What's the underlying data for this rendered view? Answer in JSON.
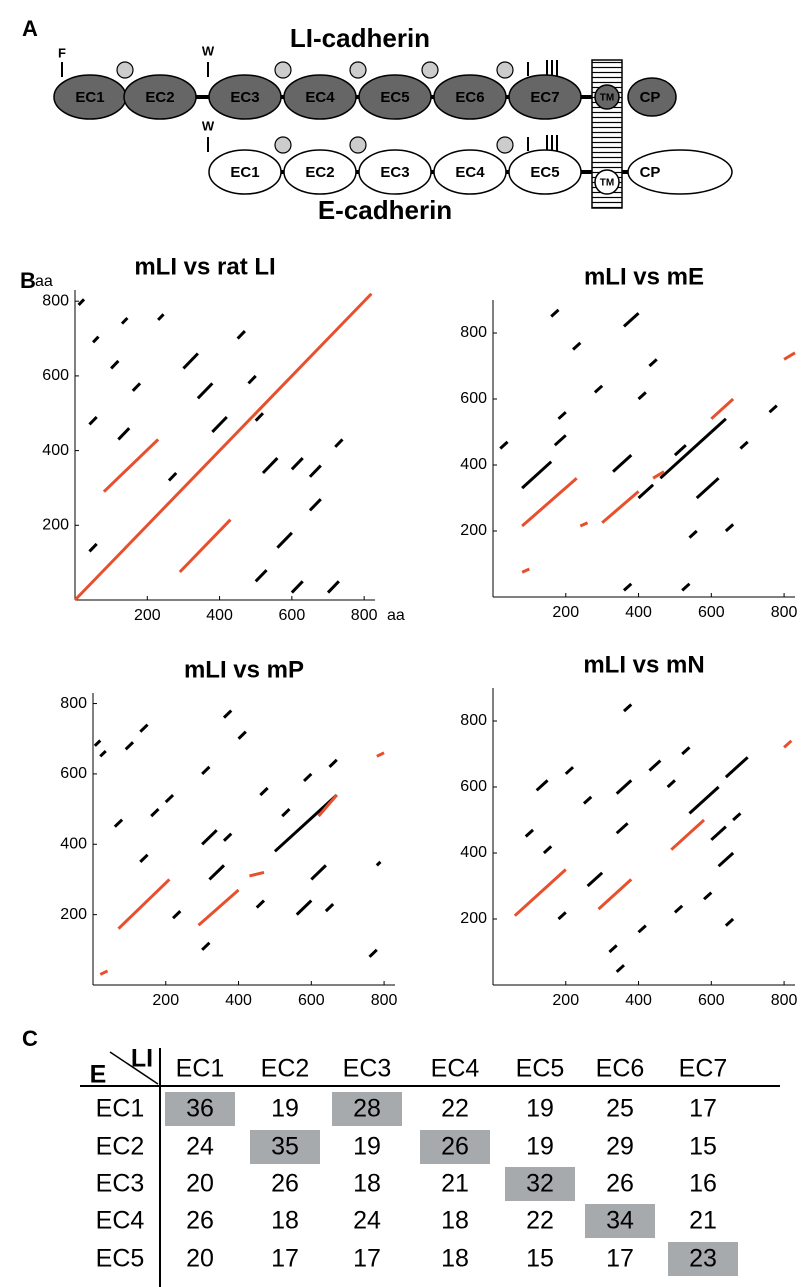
{
  "panel_a": {
    "label": "A",
    "li": {
      "title": "LI-cadherin",
      "mark_f": "F",
      "mark_w": "W",
      "domains": [
        "EC1",
        "EC2",
        "EC3",
        "EC4",
        "EC5",
        "EC6",
        "EC7"
      ],
      "tm": "TM",
      "cp": "CP"
    },
    "e": {
      "title": "E-cadherin",
      "mark_w": "W",
      "domains": [
        "EC1",
        "EC2",
        "EC3",
        "EC4",
        "EC5"
      ],
      "tm": "TM",
      "cp": "CP"
    }
  },
  "panel_b": {
    "label": "B"
  },
  "chart_data": [
    {
      "type": "dotplot",
      "title": "mLI vs rat LI",
      "x_label": "aa",
      "y_label": "aa",
      "xlim": [
        0,
        830
      ],
      "ylim": [
        0,
        830
      ],
      "xticks": [
        200,
        400,
        600,
        800
      ],
      "yticks": [
        200,
        400,
        600,
        800
      ],
      "series": [
        {
          "color": "#000000",
          "x": [
            10,
            25,
            null,
            50,
            65,
            null,
            130,
            145,
            null,
            230,
            245,
            null,
            100,
            120,
            null,
            160,
            180,
            null,
            40,
            60,
            null,
            120,
            150,
            null,
            300,
            340,
            null,
            340,
            380,
            null,
            380,
            420,
            null,
            450,
            470,
            null,
            480,
            500,
            null,
            500,
            520,
            null,
            520,
            560,
            null,
            600,
            630,
            null,
            650,
            680,
            null,
            720,
            740,
            null,
            560,
            600,
            null,
            650,
            680,
            null,
            500,
            530,
            null,
            600,
            630,
            null,
            700,
            730,
            null,
            260,
            280,
            null,
            40,
            60
          ],
          "values": [
            790,
            805,
            null,
            690,
            705,
            null,
            740,
            755,
            null,
            750,
            765,
            null,
            620,
            640,
            null,
            560,
            580,
            null,
            470,
            490,
            null,
            430,
            460,
            null,
            620,
            660,
            null,
            540,
            580,
            null,
            450,
            490,
            null,
            700,
            720,
            null,
            580,
            600,
            null,
            480,
            500,
            null,
            340,
            380,
            null,
            350,
            380,
            null,
            330,
            360,
            null,
            410,
            430,
            null,
            140,
            180,
            null,
            240,
            270,
            null,
            50,
            80,
            null,
            20,
            50,
            null,
            20,
            50,
            null,
            320,
            340,
            null,
            130,
            150
          ]
        },
        {
          "color": "#e8502d",
          "x": [
            0,
            820,
            null,
            80,
            230,
            null,
            290,
            430
          ],
          "values": [
            0,
            820,
            null,
            290,
            430,
            null,
            75,
            215
          ]
        }
      ]
    },
    {
      "type": "dotplot",
      "title": "mLI vs mE",
      "xlim": [
        0,
        830
      ],
      "ylim": [
        0,
        900
      ],
      "xticks": [
        200,
        400,
        600,
        800
      ],
      "yticks": [
        200,
        400,
        600,
        800
      ],
      "series": [
        {
          "color": "#000000",
          "x": [
            20,
            40,
            null,
            160,
            180,
            null,
            220,
            240,
            null,
            280,
            300,
            null,
            180,
            200,
            null,
            360,
            400,
            null,
            430,
            450,
            null,
            400,
            420,
            null,
            170,
            200,
            null,
            330,
            380,
            null,
            400,
            440,
            null,
            460,
            600,
            null,
            500,
            530,
            null,
            560,
            620,
            null,
            600,
            640,
            null,
            680,
            700,
            null,
            540,
            560,
            null,
            640,
            660,
            null,
            360,
            380,
            null,
            520,
            540,
            null,
            760,
            780,
            null,
            80,
            160
          ],
          "values": [
            450,
            470,
            null,
            850,
            870,
            null,
            750,
            770,
            null,
            620,
            640,
            null,
            540,
            560,
            null,
            820,
            860,
            null,
            700,
            720,
            null,
            600,
            620,
            null,
            460,
            490,
            null,
            380,
            430,
            null,
            300,
            340,
            null,
            360,
            500,
            null,
            430,
            460,
            null,
            300,
            360,
            null,
            500,
            540,
            null,
            450,
            470,
            null,
            180,
            200,
            null,
            200,
            220,
            null,
            20,
            40,
            null,
            20,
            40,
            null,
            560,
            580,
            null,
            330,
            410
          ]
        },
        {
          "color": "#e8502d",
          "x": [
            80,
            230,
            null,
            240,
            260,
            null,
            300,
            400,
            null,
            440,
            470,
            null,
            600,
            660,
            null,
            800,
            830,
            null,
            80,
            100
          ],
          "values": [
            215,
            360,
            null,
            215,
            225,
            null,
            225,
            320,
            null,
            360,
            380,
            null,
            540,
            600,
            null,
            720,
            740,
            null,
            75,
            85
          ]
        }
      ]
    },
    {
      "type": "dotplot",
      "title": "mLI vs mP",
      "xlim": [
        0,
        830
      ],
      "ylim": [
        0,
        830
      ],
      "xticks": [
        200,
        400,
        600,
        800
      ],
      "yticks": [
        200,
        400,
        600,
        800
      ],
      "series": [
        {
          "color": "#000000",
          "x": [
            5,
            20,
            null,
            20,
            35,
            null,
            90,
            110,
            null,
            130,
            150,
            null,
            60,
            80,
            null,
            160,
            180,
            null,
            200,
            220,
            null,
            300,
            320,
            null,
            360,
            380,
            null,
            400,
            420,
            null,
            460,
            480,
            null,
            520,
            540,
            null,
            580,
            600,
            null,
            650,
            670,
            null,
            300,
            340,
            null,
            360,
            380,
            null,
            220,
            240,
            null,
            320,
            360,
            null,
            450,
            470,
            null,
            560,
            600,
            null,
            600,
            640,
            null,
            640,
            660,
            null,
            300,
            320,
            null,
            780,
            790,
            null,
            760,
            780,
            null,
            130,
            150,
            null,
            500,
            670
          ],
          "values": [
            680,
            695,
            null,
            650,
            665,
            null,
            670,
            690,
            null,
            720,
            740,
            null,
            450,
            470,
            null,
            480,
            500,
            null,
            520,
            540,
            null,
            600,
            620,
            null,
            760,
            780,
            null,
            700,
            720,
            null,
            540,
            560,
            null,
            480,
            500,
            null,
            580,
            600,
            null,
            620,
            640,
            null,
            400,
            440,
            null,
            410,
            430,
            null,
            190,
            210,
            null,
            300,
            340,
            null,
            220,
            240,
            null,
            200,
            240,
            null,
            300,
            340,
            null,
            210,
            230,
            null,
            100,
            120,
            null,
            340,
            350,
            null,
            80,
            100,
            null,
            350,
            370,
            null,
            380,
            540
          ]
        },
        {
          "color": "#e8502d",
          "x": [
            70,
            210,
            null,
            290,
            400,
            null,
            430,
            470,
            null,
            620,
            670,
            null,
            780,
            800,
            null,
            20,
            40
          ],
          "values": [
            160,
            300,
            null,
            170,
            270,
            null,
            310,
            320,
            null,
            480,
            540,
            null,
            650,
            660,
            null,
            30,
            40
          ]
        }
      ]
    },
    {
      "type": "dotplot",
      "title": "mLI vs mN",
      "xlim": [
        0,
        830
      ],
      "ylim": [
        0,
        900
      ],
      "xticks": [
        200,
        400,
        600,
        800
      ],
      "yticks": [
        200,
        400,
        600,
        800
      ],
      "series": [
        {
          "color": "#000000",
          "x": [
            90,
            110,
            null,
            120,
            150,
            null,
            200,
            220,
            null,
            250,
            270,
            null,
            340,
            370,
            null,
            340,
            380,
            null,
            360,
            380,
            null,
            430,
            460,
            null,
            520,
            540,
            null,
            480,
            500,
            null,
            540,
            620,
            null,
            640,
            700,
            null,
            600,
            640,
            null,
            620,
            660,
            null,
            260,
            300,
            null,
            180,
            200,
            null,
            400,
            420,
            null,
            320,
            340,
            null,
            340,
            360,
            null,
            580,
            600,
            null,
            640,
            660,
            null,
            500,
            520,
            null,
            140,
            160,
            null,
            660,
            680
          ],
          "values": [
            450,
            470,
            null,
            590,
            620,
            null,
            640,
            660,
            null,
            550,
            570,
            null,
            460,
            490,
            null,
            580,
            620,
            null,
            830,
            850,
            null,
            650,
            680,
            null,
            700,
            720,
            null,
            600,
            620,
            null,
            520,
            600,
            null,
            630,
            690,
            null,
            440,
            480,
            null,
            360,
            400,
            null,
            300,
            340,
            null,
            200,
            220,
            null,
            160,
            180,
            null,
            100,
            120,
            null,
            40,
            60,
            null,
            260,
            280,
            null,
            180,
            200,
            null,
            220,
            240,
            null,
            400,
            420,
            null,
            500,
            520
          ]
        },
        {
          "color": "#e8502d",
          "x": [
            60,
            200,
            null,
            290,
            380,
            null,
            490,
            580,
            null,
            800,
            820
          ],
          "values": [
            210,
            350,
            null,
            230,
            320,
            null,
            410,
            500,
            null,
            720,
            740
          ]
        }
      ]
    }
  ],
  "panel_c": {
    "label": "C",
    "corner_col": "LI",
    "corner_row": "E",
    "columns": [
      "EC1",
      "EC2",
      "EC3",
      "EC4",
      "EC5",
      "EC6",
      "EC7"
    ],
    "rows": [
      {
        "label": "EC1",
        "cells": [
          36,
          19,
          28,
          22,
          19,
          25,
          17
        ]
      },
      {
        "label": "EC2",
        "cells": [
          24,
          35,
          19,
          26,
          19,
          29,
          15
        ]
      },
      {
        "label": "EC3",
        "cells": [
          20,
          26,
          18,
          21,
          32,
          26,
          16
        ]
      },
      {
        "label": "EC4",
        "cells": [
          26,
          18,
          24,
          18,
          22,
          34,
          21
        ]
      },
      {
        "label": "EC5",
        "cells": [
          20,
          17,
          17,
          18,
          15,
          17,
          23
        ]
      }
    ],
    "highlight_color": "#a7aaac",
    "highlight": [
      [
        0,
        0
      ],
      [
        0,
        2
      ],
      [
        1,
        1
      ],
      [
        1,
        3
      ],
      [
        2,
        4
      ],
      [
        3,
        5
      ],
      [
        4,
        6
      ]
    ]
  }
}
